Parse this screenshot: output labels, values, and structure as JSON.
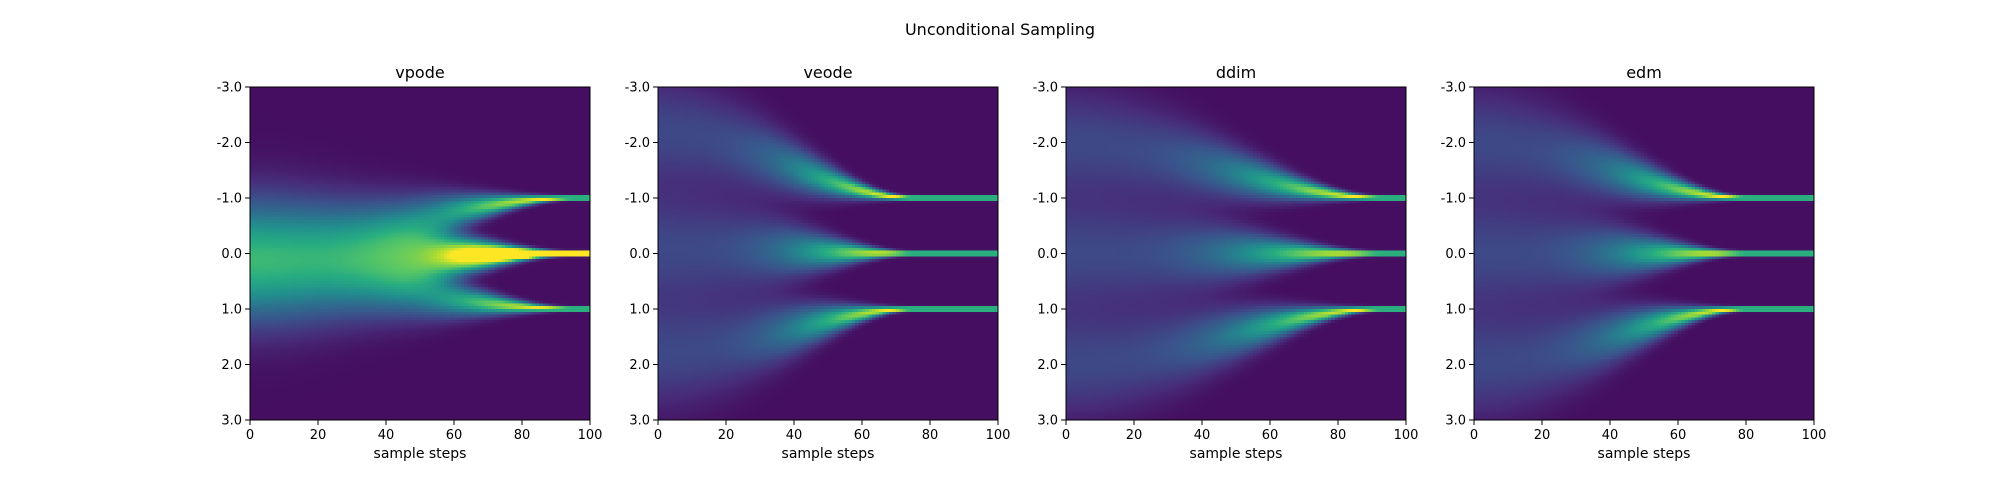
{
  "suptitle": "Unconditional Sampling",
  "chart_data": [
    {
      "type": "heatmap",
      "title": "vpode",
      "xlabel": "sample steps",
      "ylabel": "",
      "xlim": [
        0,
        100
      ],
      "ylim": [
        -3.0,
        3.0
      ],
      "y_inverted": true,
      "xticks": [
        0,
        20,
        40,
        60,
        80,
        100
      ],
      "yticks": [
        "-3.0",
        "-2.0",
        "-1.0",
        "0.0",
        "1.0",
        "2.0",
        "3.0"
      ],
      "colormap": "viridis",
      "attractors": [
        {
          "start": -0.2,
          "end": -1.0
        },
        {
          "start": -0.2,
          "end": 0.0
        },
        {
          "start": 0.45,
          "end": 0.0
        },
        {
          "start": 0.45,
          "end": 1.0
        }
      ],
      "converge_step": 95
    },
    {
      "type": "heatmap",
      "title": "veode",
      "xlabel": "sample steps",
      "ylabel": "",
      "xlim": [
        0,
        100
      ],
      "ylim": [
        -3.0,
        3.0
      ],
      "y_inverted": true,
      "xticks": [
        0,
        20,
        40,
        60,
        80,
        100
      ],
      "yticks": [
        "-3.0",
        "-2.0",
        "-1.0",
        "0.0",
        "1.0",
        "2.0",
        "3.0"
      ],
      "colormap": "viridis",
      "attractors": [
        {
          "start": -2.2,
          "end": -1.0
        },
        {
          "start": -0.1,
          "end": 0.0
        },
        {
          "start": 1.8,
          "end": 1.0
        }
      ],
      "converge_step": 75
    },
    {
      "type": "heatmap",
      "title": "ddim",
      "xlabel": "sample steps",
      "ylabel": "",
      "xlim": [
        0,
        100
      ],
      "ylim": [
        -3.0,
        3.0
      ],
      "y_inverted": true,
      "xticks": [
        0,
        20,
        40,
        60,
        80,
        100
      ],
      "yticks": [
        "-3.0",
        "-2.0",
        "-1.0",
        "0.0",
        "1.0",
        "2.0",
        "3.0"
      ],
      "colormap": "viridis",
      "attractors": [
        {
          "start": -2.0,
          "end": -1.0
        },
        {
          "start": 0.0,
          "end": 0.0
        },
        {
          "start": 2.0,
          "end": 1.0
        }
      ],
      "converge_step": 93
    },
    {
      "type": "heatmap",
      "title": "edm",
      "xlabel": "sample steps",
      "ylabel": "",
      "xlim": [
        0,
        100
      ],
      "ylim": [
        -3.0,
        3.0
      ],
      "y_inverted": true,
      "xticks": [
        0,
        20,
        40,
        60,
        80,
        100
      ],
      "yticks": [
        "-3.0",
        "-2.0",
        "-1.0",
        "0.0",
        "1.0",
        "2.0",
        "3.0"
      ],
      "colormap": "viridis",
      "attractors": [
        {
          "start": -2.0,
          "end": -1.0
        },
        {
          "start": 0.0,
          "end": 0.0
        },
        {
          "start": 2.0,
          "end": 1.0
        }
      ],
      "converge_step": 80
    }
  ]
}
